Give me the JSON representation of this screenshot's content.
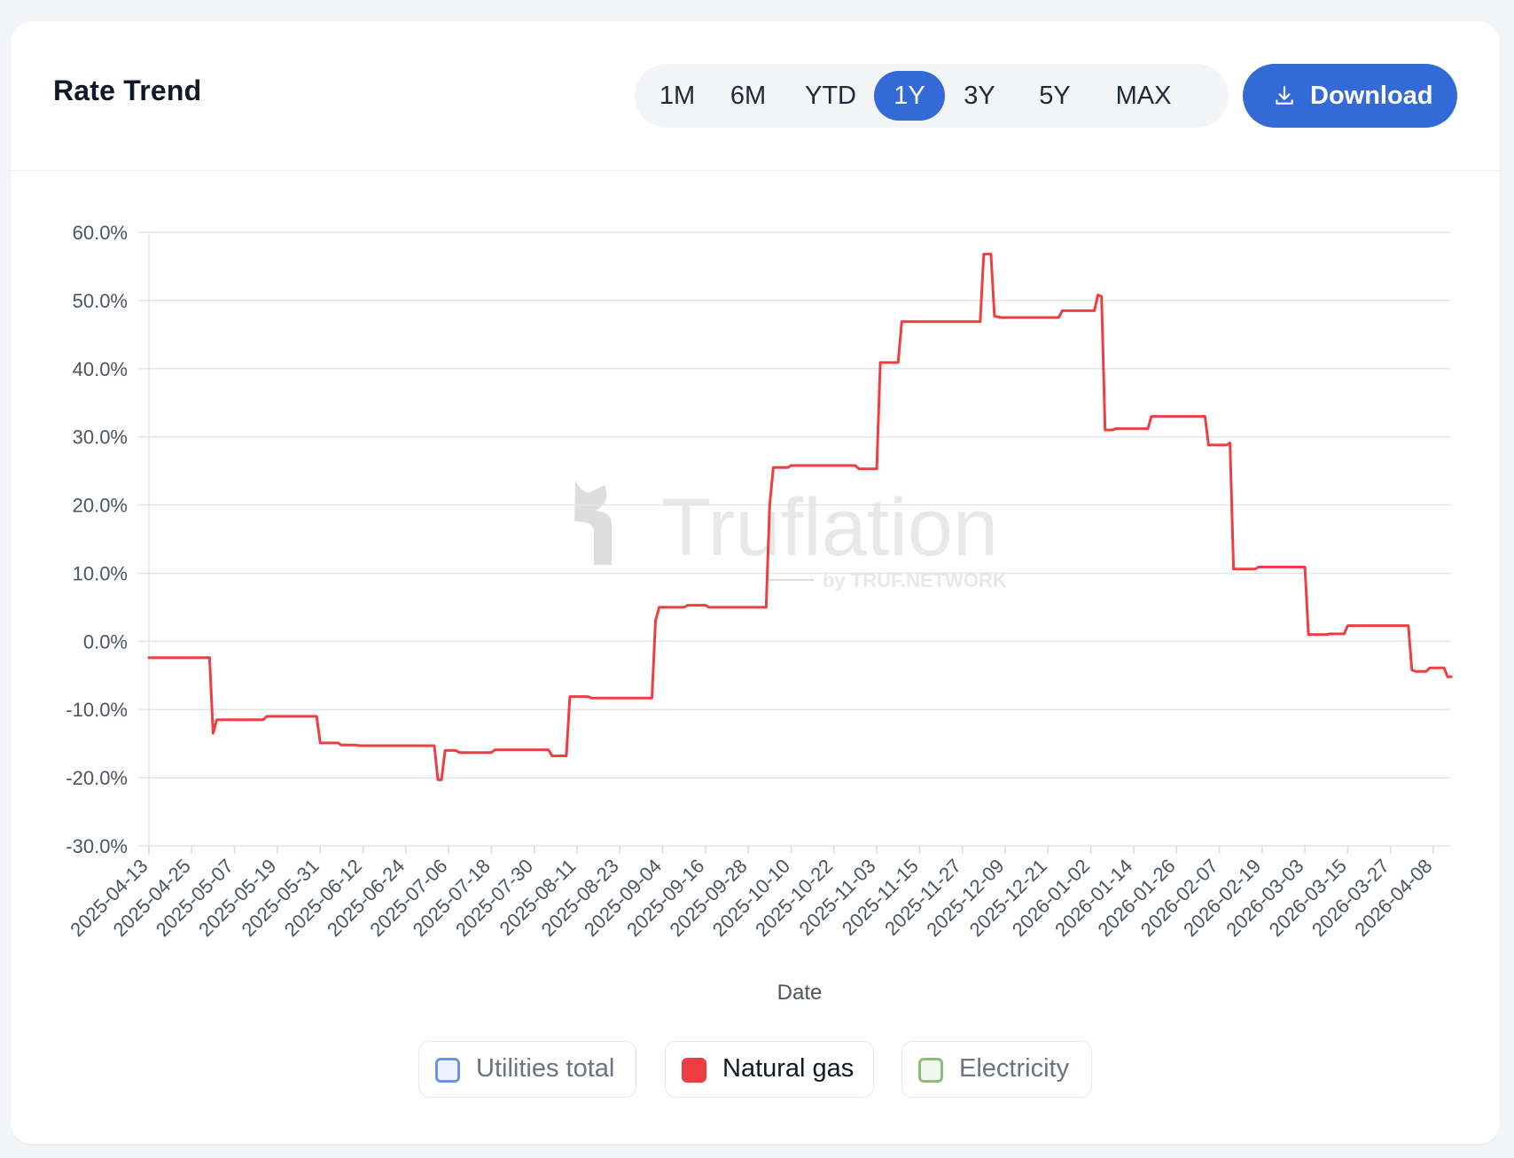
{
  "header": {
    "title": "Rate Trend",
    "ranges": [
      "1M",
      "6M",
      "YTD",
      "1Y",
      "3Y",
      "5Y",
      "MAX"
    ],
    "active_range": "1Y",
    "download_label": "Download",
    "accent_color": "#3469d8"
  },
  "watermark": {
    "brand": "Truflation",
    "sub": "by TRUF.NETWORK"
  },
  "legend": [
    {
      "label": "Utilities total",
      "color": "#6f95dd",
      "fill": "#eef2fc",
      "active": false
    },
    {
      "label": "Natural gas",
      "color": "#ef3e42",
      "fill": "#ef3e42",
      "active": true
    },
    {
      "label": "Electricity",
      "color": "#8cbd7c",
      "fill": "#f1f8ee",
      "active": false
    }
  ],
  "chart_data": {
    "type": "line",
    "xlabel": "Date",
    "ylabel": "",
    "ylim": [
      -30,
      60
    ],
    "yticks": [
      "60.0%",
      "50.0%",
      "40.0%",
      "30.0%",
      "20.0%",
      "10.0%",
      "0.0%",
      "-10.0%",
      "-20.0%",
      "-30.0%"
    ],
    "xticks": [
      "2025-04-13",
      "2025-04-25",
      "2025-05-07",
      "2025-05-19",
      "2025-05-31",
      "2025-06-12",
      "2025-06-24",
      "2025-07-06",
      "2025-07-18",
      "2025-07-30",
      "2025-08-11",
      "2025-08-23",
      "2025-09-04",
      "2025-09-16",
      "2025-09-28",
      "2025-10-10",
      "2025-10-22",
      "2025-11-03",
      "2025-11-15",
      "2025-11-27",
      "2025-12-09",
      "2025-12-21",
      "2026-01-02",
      "2026-01-14",
      "2026-01-26",
      "2026-02-07",
      "2026-02-19",
      "2026-03-03",
      "2026-03-15",
      "2026-03-27",
      "2026-04-08"
    ],
    "grid": true,
    "legend_position": "bottom",
    "series": [
      {
        "name": "Natural gas",
        "color": "#ef3e42",
        "points": [
          [
            "2025-04-13",
            -2.4
          ],
          [
            "2025-04-30",
            -2.4
          ],
          [
            "2025-05-01",
            -13.5
          ],
          [
            "2025-05-02",
            -11.5
          ],
          [
            "2025-05-15",
            -11.5
          ],
          [
            "2025-05-16",
            -11.0
          ],
          [
            "2025-05-30",
            -11.0
          ],
          [
            "2025-05-31",
            -14.9
          ],
          [
            "2025-06-05",
            -14.9
          ],
          [
            "2025-06-06",
            -15.2
          ],
          [
            "2025-06-10",
            -15.2
          ],
          [
            "2025-06-11",
            -15.3
          ],
          [
            "2025-07-02",
            -15.3
          ],
          [
            "2025-07-03",
            -20.3
          ],
          [
            "2025-07-04",
            -20.3
          ],
          [
            "2025-07-05",
            -16.0
          ],
          [
            "2025-07-08",
            -16.0
          ],
          [
            "2025-07-09",
            -16.3
          ],
          [
            "2025-07-18",
            -16.3
          ],
          [
            "2025-07-19",
            -15.9
          ],
          [
            "2025-08-03",
            -15.9
          ],
          [
            "2025-08-04",
            -16.8
          ],
          [
            "2025-08-08",
            -16.8
          ],
          [
            "2025-08-09",
            -8.1
          ],
          [
            "2025-08-14",
            -8.1
          ],
          [
            "2025-08-15",
            -8.3
          ],
          [
            "2025-09-01",
            -8.3
          ],
          [
            "2025-09-02",
            3.0
          ],
          [
            "2025-09-03",
            5.0
          ],
          [
            "2025-09-10",
            5.0
          ],
          [
            "2025-09-11",
            5.3
          ],
          [
            "2025-09-16",
            5.3
          ],
          [
            "2025-09-17",
            5.0
          ],
          [
            "2025-10-03",
            5.0
          ],
          [
            "2025-10-04",
            20.0
          ],
          [
            "2025-10-05",
            25.5
          ],
          [
            "2025-10-09",
            25.5
          ],
          [
            "2025-10-10",
            25.8
          ],
          [
            "2025-10-28",
            25.8
          ],
          [
            "2025-10-29",
            25.3
          ],
          [
            "2025-11-03",
            25.3
          ],
          [
            "2025-11-04",
            40.9
          ],
          [
            "2025-11-09",
            40.9
          ],
          [
            "2025-11-10",
            46.9
          ],
          [
            "2025-12-02",
            46.9
          ],
          [
            "2025-12-03",
            56.8
          ],
          [
            "2025-12-05",
            56.8
          ],
          [
            "2025-12-06",
            47.7
          ],
          [
            "2025-12-08",
            47.5
          ],
          [
            "2025-12-24",
            47.5
          ],
          [
            "2025-12-25",
            48.5
          ],
          [
            "2026-01-03",
            48.5
          ],
          [
            "2026-01-04",
            50.8
          ],
          [
            "2026-01-05",
            50.6
          ],
          [
            "2026-01-06",
            31.0
          ],
          [
            "2026-01-08",
            31.0
          ],
          [
            "2026-01-09",
            31.2
          ],
          [
            "2026-01-18",
            31.2
          ],
          [
            "2026-01-19",
            33.0
          ],
          [
            "2026-02-03",
            33.0
          ],
          [
            "2026-02-04",
            28.8
          ],
          [
            "2026-02-09",
            28.8
          ],
          [
            "2026-02-10",
            29.1
          ],
          [
            "2026-02-11",
            10.6
          ],
          [
            "2026-02-17",
            10.6
          ],
          [
            "2026-02-18",
            10.9
          ],
          [
            "2026-03-03",
            10.9
          ],
          [
            "2026-03-04",
            1.0
          ],
          [
            "2026-03-09",
            1.0
          ],
          [
            "2026-03-10",
            1.1
          ],
          [
            "2026-03-14",
            1.1
          ],
          [
            "2026-03-15",
            2.3
          ],
          [
            "2026-04-01",
            2.3
          ],
          [
            "2026-04-02",
            -4.2
          ],
          [
            "2026-04-03",
            -4.4
          ],
          [
            "2026-04-06",
            -4.4
          ],
          [
            "2026-04-07",
            -3.9
          ],
          [
            "2026-04-11",
            -3.9
          ],
          [
            "2026-04-12",
            -5.2
          ],
          [
            "2026-04-13",
            -5.2
          ]
        ]
      }
    ]
  }
}
